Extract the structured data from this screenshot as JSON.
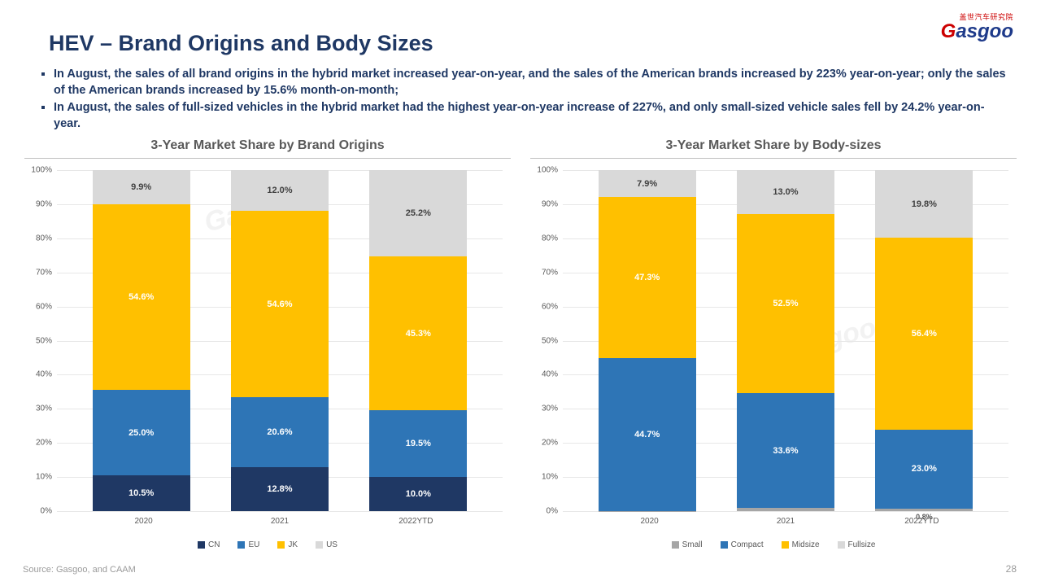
{
  "title": "HEV – Brand Origins and Body Sizes",
  "bullets": [
    "In August, the sales of all brand origins in the hybrid market increased year-on-year, and the sales of the American brands increased by 223% year-on-year; only the sales of the American brands increased by 15.6% month-on-month;",
    "In August, the sales of full-sized vehicles in the hybrid market had the highest year-on-year increase of 227%, and only small-sized vehicle sales fell by 24.2% year-on-year."
  ],
  "source": "Source: Gasgoo, and CAAM",
  "page_num": "28",
  "logo": {
    "top": "盖世汽车研究院",
    "main_before": "G",
    "main_after": "asgoo"
  },
  "colors": {
    "navy": "#1f3864",
    "blue": "#2e75b6",
    "yellow": "#ffc000",
    "grey": "#d9d9d9",
    "mgrey": "#a6a6a6"
  },
  "chart_left": {
    "title": "3-Year Market Share by Brand Origins",
    "categories": [
      "2020",
      "2021",
      "2022YTD"
    ],
    "series": [
      {
        "key": "CN",
        "color": "#1f3864",
        "values": [
          10.5,
          12.8,
          10.0
        ],
        "labels": [
          "10.5%",
          "12.8%",
          "10.0%"
        ],
        "label_class": "light"
      },
      {
        "key": "EU",
        "color": "#2e75b6",
        "values": [
          25.0,
          20.6,
          19.5
        ],
        "labels": [
          "25.0%",
          "20.6%",
          "19.5%"
        ],
        "label_class": "light"
      },
      {
        "key": "JK",
        "color": "#ffc000",
        "values": [
          54.6,
          54.6,
          45.3
        ],
        "labels": [
          "54.6%",
          "54.6%",
          "45.3%"
        ],
        "label_class": "light"
      },
      {
        "key": "US",
        "color": "#d9d9d9",
        "values": [
          9.9,
          12.0,
          25.2
        ],
        "labels": [
          "9.9%",
          "12.0%",
          "25.2%"
        ],
        "label_class": "dark"
      }
    ],
    "ymax": 100,
    "ytick_step": 10,
    "legend": [
      "CN",
      "EU",
      "JK",
      "US"
    ]
  },
  "chart_right": {
    "title": "3-Year Market Share by Body-sizes",
    "categories": [
      "2020",
      "2021",
      "2022YTD"
    ],
    "series": [
      {
        "key": "Small",
        "color": "#a6a6a6",
        "values": [
          0.1,
          0.9,
          0.8
        ],
        "labels": [
          "",
          "",
          "0.8%"
        ],
        "label_class": "tiny"
      },
      {
        "key": "Compact",
        "color": "#2e75b6",
        "values": [
          44.7,
          33.6,
          23.0
        ],
        "labels": [
          "44.7%",
          "33.6%",
          "23.0%"
        ],
        "label_class": "light"
      },
      {
        "key": "Midsize",
        "color": "#ffc000",
        "values": [
          47.3,
          52.5,
          56.4
        ],
        "labels": [
          "47.3%",
          "52.5%",
          "56.4%"
        ],
        "label_class": "light"
      },
      {
        "key": "Fullsize",
        "color": "#d9d9d9",
        "values": [
          7.9,
          13.0,
          19.8
        ],
        "labels": [
          "7.9%",
          "13.0%",
          "19.8%"
        ],
        "label_class": "dark"
      }
    ],
    "ymax": 100,
    "ytick_step": 10,
    "legend": [
      "Small",
      "Compact",
      "Midsize",
      "Fullsize"
    ]
  }
}
